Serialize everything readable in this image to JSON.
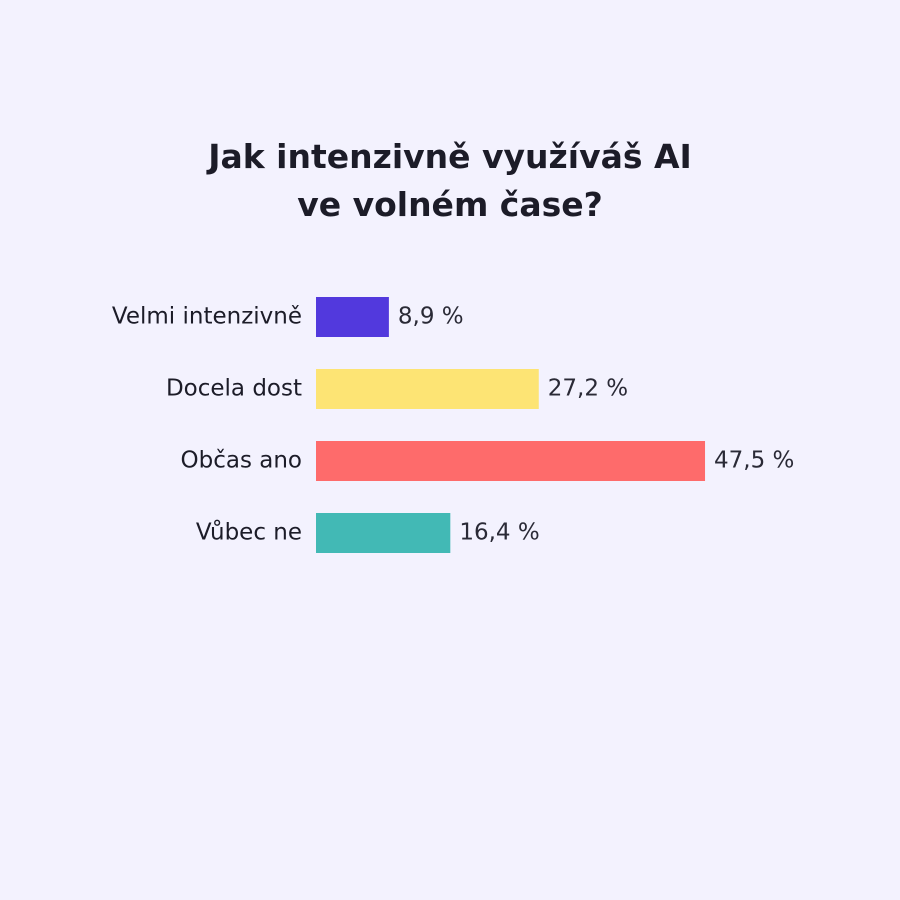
{
  "chart_data": {
    "type": "bar",
    "orientation": "horizontal",
    "title": [
      "Jak intenzivně využíváš AI",
      "ve volném čase?"
    ],
    "categories": [
      "Velmi intenzivně",
      "Docela dost",
      "Občas ano",
      "Vůbec ne"
    ],
    "values": [
      8.9,
      27.2,
      47.5,
      16.4
    ],
    "value_labels": [
      "8,9 %",
      "27,2 %",
      "47,5 %",
      "16,4 %"
    ],
    "colors": [
      "#5239dd",
      "#fde474",
      "#fe6b6b",
      "#42b9b5"
    ]
  }
}
